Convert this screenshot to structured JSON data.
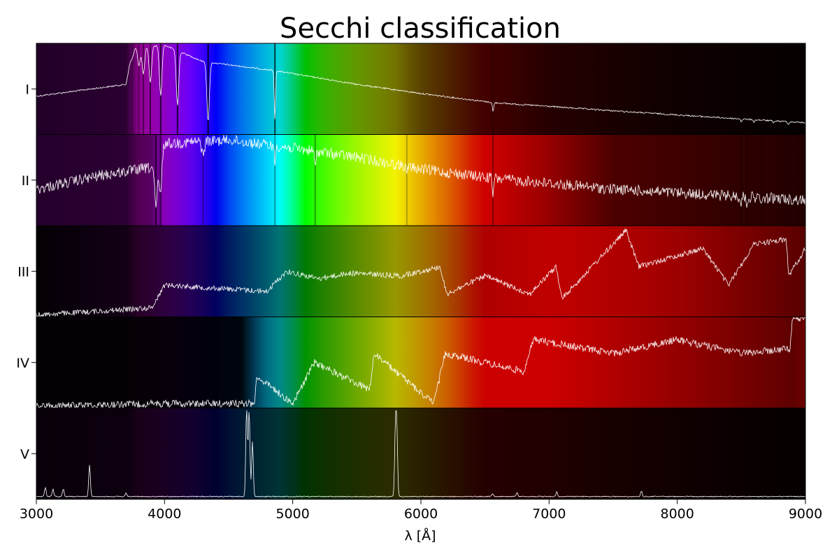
{
  "chart_data": {
    "type": "line",
    "title": "Secchi classification",
    "xlabel": "λ [Å]",
    "xlim": [
      3000,
      9000
    ],
    "xticks": [
      3000,
      4000,
      5000,
      6000,
      7000,
      8000,
      9000
    ],
    "grid": false,
    "series": [
      {
        "name": "I",
        "continuum": [
          [
            3000,
            0.58
          ],
          [
            3700,
            0.45
          ],
          [
            3750,
            0.05
          ],
          [
            4000,
            0.02
          ],
          [
            4300,
            0.2
          ],
          [
            4861,
            0.3
          ],
          [
            5500,
            0.45
          ],
          [
            6000,
            0.55
          ],
          [
            6563,
            0.65
          ],
          [
            7500,
            0.74
          ],
          [
            8500,
            0.83
          ],
          [
            9000,
            0.87
          ]
        ],
        "absorption_lines": [
          [
            3750,
            0.1
          ],
          [
            3800,
            0.2
          ],
          [
            3835,
            0.3
          ],
          [
            3889,
            0.4
          ],
          [
            3970,
            0.55
          ],
          [
            4101,
            0.6
          ],
          [
            4340,
            0.65
          ],
          [
            4861,
            0.55
          ],
          [
            6563,
            0.1
          ],
          [
            8500,
            0.03
          ],
          [
            8600,
            0.03
          ],
          [
            8750,
            0.03
          ],
          [
            8865,
            0.03
          ]
        ],
        "emission_lines": [],
        "noise": 0.008,
        "brightness": [
          [
            3000,
            0.4
          ],
          [
            3700,
            0.5
          ],
          [
            3800,
            0.9
          ],
          [
            4300,
            1.0
          ],
          [
            4861,
            0.85
          ],
          [
            5500,
            0.6
          ],
          [
            6000,
            0.35
          ],
          [
            6563,
            0.25
          ],
          [
            7000,
            0.15
          ],
          [
            8000,
            0.08
          ],
          [
            9000,
            0.05
          ]
        ]
      },
      {
        "name": "II",
        "continuum": [
          [
            3000,
            0.6
          ],
          [
            3500,
            0.45
          ],
          [
            3950,
            0.35
          ],
          [
            4000,
            0.1
          ],
          [
            4500,
            0.06
          ],
          [
            5000,
            0.15
          ],
          [
            5500,
            0.25
          ],
          [
            6000,
            0.38
          ],
          [
            6563,
            0.48
          ],
          [
            7500,
            0.6
          ],
          [
            8500,
            0.68
          ],
          [
            9000,
            0.72
          ]
        ],
        "absorption_lines": [
          [
            3933,
            0.45
          ],
          [
            3968,
            0.4
          ],
          [
            4300,
            0.15
          ],
          [
            4861,
            0.2
          ],
          [
            5175,
            0.2
          ],
          [
            5890,
            0.1
          ],
          [
            6563,
            0.2
          ],
          [
            8498,
            0.08
          ],
          [
            8542,
            0.1
          ],
          [
            8662,
            0.1
          ]
        ],
        "emission_lines": [],
        "noise": 0.06,
        "brightness": [
          [
            3000,
            0.45
          ],
          [
            3900,
            0.55
          ],
          [
            4000,
            0.9
          ],
          [
            5000,
            1.0
          ],
          [
            5800,
            0.95
          ],
          [
            6563,
            0.8
          ],
          [
            7500,
            0.35
          ],
          [
            9000,
            0.3
          ]
        ]
      },
      {
        "name": "III",
        "continuum": [
          [
            3000,
            0.98
          ],
          [
            3900,
            0.9
          ],
          [
            4000,
            0.65
          ],
          [
            4800,
            0.72
          ],
          [
            4950,
            0.5
          ],
          [
            5200,
            0.58
          ],
          [
            5450,
            0.52
          ],
          [
            5850,
            0.55
          ],
          [
            6150,
            0.45
          ],
          [
            6200,
            0.75
          ],
          [
            6500,
            0.55
          ],
          [
            6850,
            0.75
          ],
          [
            7054,
            0.45
          ],
          [
            7100,
            0.8
          ],
          [
            7600,
            0.05
          ],
          [
            7700,
            0.45
          ],
          [
            8200,
            0.25
          ],
          [
            8400,
            0.65
          ],
          [
            8600,
            0.2
          ],
          [
            8850,
            0.15
          ],
          [
            8870,
            0.55
          ],
          [
            9000,
            0.25
          ]
        ],
        "absorption_lines": [],
        "emission_lines": [],
        "noise": 0.03,
        "brightness": [
          [
            3000,
            0.05
          ],
          [
            4000,
            0.3
          ],
          [
            4900,
            0.45
          ],
          [
            5500,
            0.55
          ],
          [
            6200,
            0.65
          ],
          [
            7000,
            0.75
          ],
          [
            8000,
            0.85
          ],
          [
            9000,
            0.8
          ]
        ]
      },
      {
        "name": "IV",
        "continuum": [
          [
            3000,
            0.98
          ],
          [
            4000,
            0.95
          ],
          [
            4700,
            0.95
          ],
          [
            4720,
            0.65
          ],
          [
            5000,
            0.95
          ],
          [
            5170,
            0.5
          ],
          [
            5600,
            0.8
          ],
          [
            5635,
            0.4
          ],
          [
            6100,
            0.95
          ],
          [
            6190,
            0.4
          ],
          [
            6800,
            0.6
          ],
          [
            6880,
            0.25
          ],
          [
            7500,
            0.4
          ],
          [
            8000,
            0.25
          ],
          [
            8500,
            0.4
          ],
          [
            8880,
            0.35
          ],
          [
            8900,
            0.02
          ],
          [
            9000,
            0.02
          ]
        ],
        "absorption_lines": [],
        "emission_lines": [],
        "noise": 0.04,
        "brightness": [
          [
            3000,
            0.05
          ],
          [
            4600,
            0.05
          ],
          [
            4750,
            0.5
          ],
          [
            5200,
            0.6
          ],
          [
            5700,
            0.7
          ],
          [
            6200,
            0.8
          ],
          [
            7000,
            0.8
          ],
          [
            8900,
            0.8
          ],
          [
            9000,
            1.0
          ]
        ]
      },
      {
        "name": "V",
        "continuum": [
          [
            3000,
            0.97
          ],
          [
            9000,
            0.97
          ]
        ],
        "absorption_lines": [],
        "emission_lines": [
          [
            3070,
            0.1
          ],
          [
            3130,
            0.08
          ],
          [
            3210,
            0.08
          ],
          [
            3415,
            0.35
          ],
          [
            3700,
            0.04
          ],
          [
            4640,
            0.97
          ],
          [
            4660,
            0.95
          ],
          [
            4686,
            0.6
          ],
          [
            5801,
            0.7
          ],
          [
            5812,
            0.7
          ],
          [
            6560,
            0.03
          ],
          [
            6750,
            0.04
          ],
          [
            7060,
            0.05
          ],
          [
            7720,
            0.06
          ]
        ],
        "noise": 0.005,
        "brightness": [
          [
            3000,
            0.1
          ],
          [
            4500,
            0.2
          ],
          [
            5000,
            0.2
          ],
          [
            9000,
            0.05
          ]
        ]
      }
    ]
  }
}
